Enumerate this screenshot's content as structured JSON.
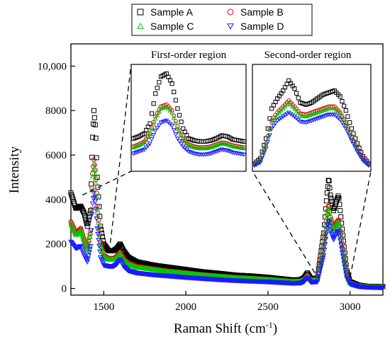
{
  "chart_data": {
    "type": "scatter",
    "xlabel": "Raman Shift (cm",
    "xlabel_sup": "-1",
    "xlabel_close": ")",
    "ylabel": "Intensity",
    "xlim": [
      1300,
      3200
    ],
    "ylim": [
      -300,
      11000
    ],
    "x_ticks": [
      1500,
      2000,
      2500,
      3000
    ],
    "x_tick_labels": [
      "1500",
      "2000",
      "2500",
      "3000"
    ],
    "y_ticks": [
      0,
      2000,
      4000,
      6000,
      8000,
      10000
    ],
    "y_tick_labels": [
      "0",
      "2000",
      "4000",
      "6000",
      "8000",
      "10,000"
    ],
    "legend_position": "top-center",
    "series": [
      {
        "name": "Sample A",
        "color": "#000000",
        "marker": "square",
        "x": [
          1300,
          1330,
          1360,
          1380,
          1400,
          1420,
          1430,
          1440,
          1450,
          1460,
          1480,
          1500,
          1530,
          1560,
          1580,
          1600,
          1620,
          1650,
          1700,
          1800,
          1900,
          2000,
          2100,
          2200,
          2300,
          2400,
          2500,
          2600,
          2650,
          2700,
          2720,
          2740,
          2760,
          2800,
          2840,
          2860,
          2870,
          2880,
          2900,
          2920,
          2930,
          2950,
          2980,
          3000,
          3050,
          3100,
          3200
        ],
        "y": [
          4300,
          3600,
          3700,
          3400,
          2800,
          3500,
          6500,
          8000,
          7200,
          5000,
          2800,
          2000,
          1700,
          1700,
          1800,
          2000,
          1700,
          1400,
          1200,
          1050,
          950,
          850,
          750,
          680,
          600,
          560,
          500,
          420,
          380,
          400,
          480,
          700,
          450,
          460,
          2500,
          4300,
          5000,
          4200,
          3500,
          4000,
          4200,
          2800,
          800,
          300,
          150,
          100,
          80
        ]
      },
      {
        "name": "Sample B",
        "color": "#e8000b",
        "marker": "circle",
        "x": [
          1300,
          1330,
          1360,
          1380,
          1400,
          1420,
          1430,
          1440,
          1450,
          1460,
          1480,
          1500,
          1530,
          1560,
          1580,
          1600,
          1620,
          1650,
          1700,
          1800,
          1900,
          2000,
          2100,
          2200,
          2300,
          2400,
          2500,
          2600,
          2650,
          2700,
          2720,
          2740,
          2760,
          2800,
          2840,
          2860,
          2870,
          2880,
          2900,
          2920,
          2930,
          2950,
          2980,
          3000,
          3050,
          3100,
          3200
        ],
        "y": [
          3000,
          2500,
          2700,
          2200,
          1800,
          2600,
          5000,
          5800,
          5200,
          3700,
          2100,
          1500,
          1350,
          1350,
          1450,
          1650,
          1350,
          1150,
          1000,
          880,
          780,
          700,
          620,
          560,
          500,
          460,
          410,
          350,
          320,
          340,
          410,
          600,
          380,
          390,
          2000,
          3300,
          3800,
          3200,
          2700,
          3000,
          3100,
          2100,
          600,
          250,
          120,
          80,
          60
        ]
      },
      {
        "name": "Sample C",
        "color": "#00c800",
        "marker": "triangle-up",
        "x": [
          1300,
          1330,
          1360,
          1380,
          1400,
          1420,
          1430,
          1440,
          1450,
          1460,
          1480,
          1500,
          1530,
          1560,
          1580,
          1600,
          1620,
          1650,
          1700,
          1800,
          1900,
          2000,
          2100,
          2200,
          2300,
          2400,
          2500,
          2600,
          2650,
          2700,
          2720,
          2740,
          2760,
          2800,
          2840,
          2860,
          2870,
          2880,
          2900,
          2920,
          2930,
          2950,
          2980,
          3000,
          3050,
          3100,
          3200
        ],
        "y": [
          2900,
          2400,
          2600,
          2100,
          1700,
          2500,
          4900,
          5600,
          5000,
          3600,
          2000,
          1450,
          1300,
          1300,
          1400,
          1600,
          1300,
          1100,
          950,
          850,
          750,
          680,
          600,
          540,
          480,
          440,
          400,
          340,
          310,
          330,
          400,
          580,
          370,
          380,
          1900,
          3200,
          3700,
          3100,
          2600,
          2900,
          3000,
          2000,
          580,
          240,
          110,
          70,
          50
        ]
      },
      {
        "name": "Sample D",
        "color": "#1a1aff",
        "marker": "triangle-down",
        "x": [
          1300,
          1330,
          1360,
          1380,
          1400,
          1420,
          1430,
          1440,
          1450,
          1460,
          1480,
          1500,
          1530,
          1560,
          1580,
          1600,
          1620,
          1650,
          1700,
          1800,
          1900,
          2000,
          2100,
          2200,
          2300,
          2400,
          2500,
          2600,
          2650,
          2700,
          2720,
          2740,
          2760,
          2800,
          2840,
          2860,
          2870,
          2880,
          2900,
          2920,
          2930,
          2950,
          2980,
          3000,
          3050,
          3100,
          3200
        ],
        "y": [
          2100,
          1800,
          1900,
          1500,
          1200,
          1900,
          3700,
          4300,
          3800,
          2700,
          1400,
          1050,
          1000,
          1000,
          1100,
          1300,
          1000,
          800,
          700,
          620,
          560,
          500,
          450,
          400,
          360,
          330,
          300,
          260,
          240,
          250,
          310,
          480,
          290,
          300,
          1500,
          2700,
          3100,
          2600,
          2200,
          2500,
          2600,
          1700,
          480,
          200,
          90,
          60,
          40
        ]
      }
    ],
    "insets": [
      {
        "title": "First-order region",
        "x_range": [
          1350,
          1700
        ],
        "series_y": [
          [
            0.3,
            0.32,
            0.35,
            0.45,
            0.75,
            0.92,
            0.95,
            0.85,
            0.6,
            0.4,
            0.3,
            0.28,
            0.27,
            0.27,
            0.28,
            0.3,
            0.33,
            0.32,
            0.29,
            0.28,
            0.27
          ],
          [
            0.22,
            0.24,
            0.27,
            0.35,
            0.52,
            0.62,
            0.64,
            0.58,
            0.42,
            0.3,
            0.24,
            0.22,
            0.21,
            0.21,
            0.22,
            0.24,
            0.26,
            0.25,
            0.23,
            0.22,
            0.21
          ],
          [
            0.21,
            0.23,
            0.26,
            0.34,
            0.5,
            0.6,
            0.62,
            0.56,
            0.4,
            0.29,
            0.23,
            0.21,
            0.2,
            0.2,
            0.21,
            0.23,
            0.25,
            0.24,
            0.22,
            0.21,
            0.2
          ],
          [
            0.15,
            0.17,
            0.19,
            0.25,
            0.38,
            0.46,
            0.48,
            0.43,
            0.3,
            0.22,
            0.17,
            0.15,
            0.14,
            0.14,
            0.15,
            0.17,
            0.19,
            0.18,
            0.16,
            0.15,
            0.14
          ]
        ]
      },
      {
        "title": "Second-order region",
        "x_range": [
          2700,
          3050
        ],
        "series_y": [
          [
            0.05,
            0.1,
            0.3,
            0.6,
            0.7,
            0.78,
            0.88,
            0.8,
            0.66,
            0.64,
            0.66,
            0.7,
            0.74,
            0.76,
            0.78,
            0.72,
            0.58,
            0.4,
            0.25,
            0.12,
            0.05
          ],
          [
            0.04,
            0.08,
            0.25,
            0.48,
            0.56,
            0.62,
            0.68,
            0.62,
            0.55,
            0.54,
            0.56,
            0.58,
            0.6,
            0.62,
            0.62,
            0.56,
            0.46,
            0.32,
            0.2,
            0.1,
            0.04
          ],
          [
            0.04,
            0.08,
            0.24,
            0.46,
            0.54,
            0.6,
            0.66,
            0.6,
            0.53,
            0.52,
            0.54,
            0.56,
            0.58,
            0.6,
            0.6,
            0.55,
            0.45,
            0.31,
            0.19,
            0.09,
            0.04
          ],
          [
            0.03,
            0.06,
            0.2,
            0.4,
            0.48,
            0.52,
            0.56,
            0.52,
            0.47,
            0.46,
            0.48,
            0.5,
            0.52,
            0.54,
            0.54,
            0.49,
            0.4,
            0.28,
            0.17,
            0.08,
            0.03
          ]
        ]
      }
    ]
  }
}
